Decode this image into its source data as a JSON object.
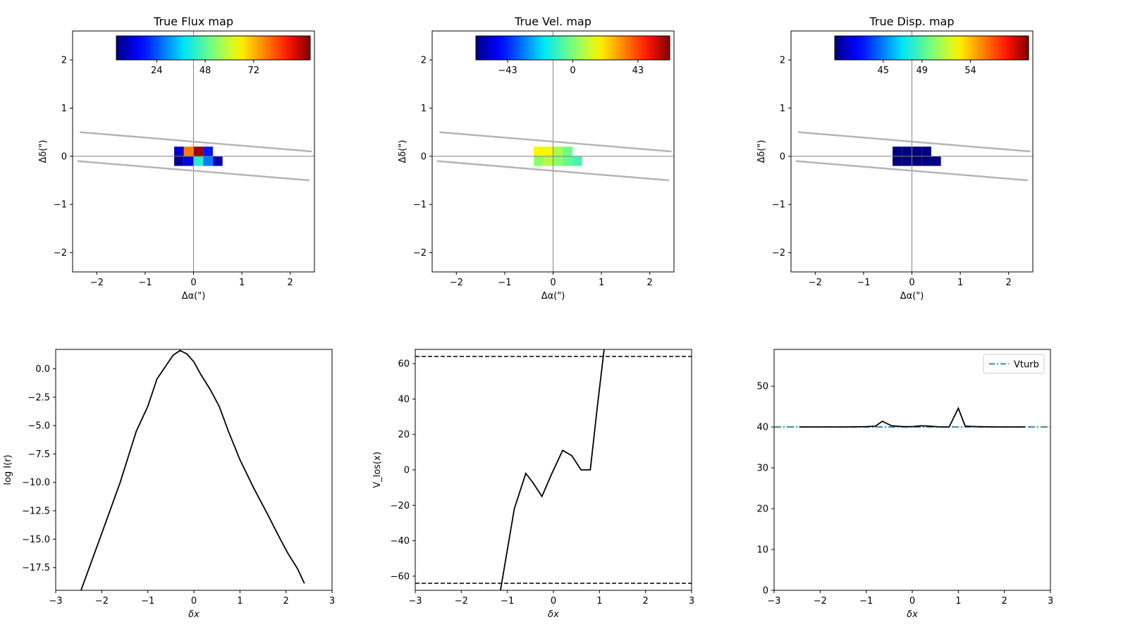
{
  "chart_data": [
    {
      "type": "heatmap",
      "title": "True Flux map",
      "xlabel": "Δα(\")",
      "ylabel": "Δδ(\")",
      "xlim": [
        -2.5,
        2.5
      ],
      "ylim": [
        -2.4,
        2.6
      ],
      "xticks": [
        -2,
        -1,
        0,
        1,
        2
      ],
      "yticks": [
        -2,
        -1,
        0,
        1,
        2
      ],
      "xtick_labels": [
        "−2",
        "−1",
        "0",
        "1",
        "2"
      ],
      "ytick_labels": [
        "−2",
        "−1",
        "0",
        "1",
        "2"
      ],
      "colormap": "jet",
      "colorbar": {
        "vmin": 4,
        "vmax": 100,
        "ticks": [
          24,
          48,
          72
        ],
        "tick_labels": [
          "24",
          "48",
          "72"
        ]
      },
      "slit_lines": [
        {
          "x": [
            -2.35,
            2.45
          ],
          "y": [
            0.5,
            0.1
          ]
        },
        {
          "x": [
            -2.4,
            2.4
          ],
          "y": [
            -0.1,
            -0.5
          ]
        }
      ],
      "pixel_size": 0.2,
      "cells": [
        {
          "x": -0.4,
          "y": 0.0,
          "v": 10
        },
        {
          "x": -0.2,
          "y": 0.0,
          "v": 78
        },
        {
          "x": 0.0,
          "y": 0.0,
          "v": 98
        },
        {
          "x": 0.2,
          "y": 0.0,
          "v": 18
        },
        {
          "x": -0.4,
          "y": -0.2,
          "v": 5
        },
        {
          "x": -0.2,
          "y": -0.2,
          "v": 12
        },
        {
          "x": 0.0,
          "y": -0.2,
          "v": 42
        },
        {
          "x": 0.2,
          "y": -0.2,
          "v": 28
        },
        {
          "x": 0.4,
          "y": -0.2,
          "v": 8
        }
      ]
    },
    {
      "type": "heatmap",
      "title": "True Vel. map",
      "xlabel": "Δα(\")",
      "ylabel": "Δδ(\")",
      "xlim": [
        -2.5,
        2.5
      ],
      "ylim": [
        -2.4,
        2.6
      ],
      "xticks": [
        -2,
        -1,
        0,
        1,
        2
      ],
      "yticks": [
        -2,
        -1,
        0,
        1,
        2
      ],
      "xtick_labels": [
        "−2",
        "−1",
        "0",
        "1",
        "2"
      ],
      "ytick_labels": [
        "−2",
        "−1",
        "0",
        "1",
        "2"
      ],
      "colormap": "jet",
      "colorbar": {
        "vmin": -64,
        "vmax": 64,
        "ticks": [
          -43,
          0,
          43
        ],
        "tick_labels": [
          "−43",
          "0",
          "43"
        ]
      },
      "slit_lines": [
        {
          "x": [
            -2.35,
            2.45
          ],
          "y": [
            0.5,
            0.1
          ]
        },
        {
          "x": [
            -2.4,
            2.4
          ],
          "y": [
            -0.1,
            -0.5
          ]
        }
      ],
      "pixel_size": 0.2,
      "cells": [
        {
          "x": -0.4,
          "y": 0.0,
          "v": 18
        },
        {
          "x": -0.2,
          "y": 0.0,
          "v": 16
        },
        {
          "x": 0.0,
          "y": 0.0,
          "v": 6
        },
        {
          "x": 0.2,
          "y": 0.0,
          "v": -2
        },
        {
          "x": -0.4,
          "y": -0.2,
          "v": 2
        },
        {
          "x": -0.2,
          "y": -0.2,
          "v": 8
        },
        {
          "x": 0.0,
          "y": -0.2,
          "v": 2
        },
        {
          "x": 0.2,
          "y": -0.2,
          "v": -4
        },
        {
          "x": 0.4,
          "y": -0.2,
          "v": -8
        }
      ]
    },
    {
      "type": "heatmap",
      "title": "True Disp. map",
      "xlabel": "Δα(\")",
      "ylabel": "Δδ(\")",
      "xlim": [
        -2.5,
        2.5
      ],
      "ylim": [
        -2.4,
        2.6
      ],
      "xticks": [
        -2,
        -1,
        0,
        1,
        2
      ],
      "yticks": [
        -2,
        -1,
        0,
        1,
        2
      ],
      "xtick_labels": [
        "−2",
        "−1",
        "0",
        "1",
        "2"
      ],
      "ytick_labels": [
        "−2",
        "−1",
        "0",
        "1",
        "2"
      ],
      "colormap": "jet",
      "colorbar": {
        "vmin": 40,
        "vmax": 60,
        "ticks": [
          45,
          49,
          54
        ],
        "tick_labels": [
          "45",
          "49",
          "54"
        ]
      },
      "slit_lines": [
        {
          "x": [
            -2.35,
            2.45
          ],
          "y": [
            0.5,
            0.1
          ]
        },
        {
          "x": [
            -2.4,
            2.4
          ],
          "y": [
            -0.1,
            -0.5
          ]
        }
      ],
      "pixel_size": 0.2,
      "cells": [
        {
          "x": -0.4,
          "y": 0.0,
          "v": 40
        },
        {
          "x": -0.2,
          "y": 0.0,
          "v": 40
        },
        {
          "x": 0.0,
          "y": 0.0,
          "v": 40
        },
        {
          "x": 0.2,
          "y": 0.0,
          "v": 40
        },
        {
          "x": -0.4,
          "y": -0.2,
          "v": 40
        },
        {
          "x": -0.2,
          "y": -0.2,
          "v": 40
        },
        {
          "x": 0.0,
          "y": -0.2,
          "v": 40
        },
        {
          "x": 0.2,
          "y": -0.2,
          "v": 40
        },
        {
          "x": 0.4,
          "y": -0.2,
          "v": 40
        }
      ]
    },
    {
      "type": "line",
      "title": "",
      "xlabel": "δx",
      "ylabel": "log I(r)",
      "xlim": [
        -3,
        3
      ],
      "ylim": [
        -19.5,
        1.7
      ],
      "xticks": [
        -3,
        -2,
        -1,
        0,
        1,
        2,
        3
      ],
      "yticks": [
        0.0,
        -2.5,
        -5.0,
        -7.5,
        -10.0,
        -12.5,
        -15.0,
        -17.5
      ],
      "xtick_labels": [
        "−3",
        "−2",
        "−1",
        "0",
        "1",
        "2",
        "3"
      ],
      "ytick_labels": [
        "0.0",
        "−2.5",
        "−5.0",
        "−7.5",
        "−10.0",
        "−12.5",
        "−15.0",
        "−17.5"
      ],
      "series": [
        {
          "color": "#000000",
          "linestyle": "solid",
          "x": [
            -2.45,
            -2.0,
            -1.6,
            -1.25,
            -1.0,
            -0.8,
            -0.6,
            -0.45,
            -0.3,
            -0.15,
            0.0,
            0.15,
            0.35,
            0.55,
            0.75,
            1.0,
            1.3,
            1.6,
            1.85,
            2.05,
            2.25,
            2.4
          ],
          "y": [
            -19.5,
            -14.5,
            -10.0,
            -5.5,
            -3.3,
            -0.9,
            0.3,
            1.2,
            1.6,
            1.3,
            0.6,
            -0.5,
            -1.8,
            -3.3,
            -5.5,
            -8.0,
            -10.5,
            -12.8,
            -14.8,
            -16.3,
            -17.6,
            -18.9
          ]
        }
      ]
    },
    {
      "type": "line",
      "title": "",
      "xlabel": "δx",
      "ylabel": "V_los(x)",
      "xlim": [
        -3,
        3
      ],
      "ylim": [
        -68,
        68
      ],
      "xticks": [
        -3,
        -2,
        -1,
        0,
        1,
        2,
        3
      ],
      "yticks": [
        60,
        40,
        20,
        0,
        -20,
        -40,
        -60
      ],
      "xtick_labels": [
        "−3",
        "−2",
        "−1",
        "0",
        "1",
        "2",
        "3"
      ],
      "ytick_labels": [
        "60",
        "40",
        "20",
        "0",
        "−20",
        "−40",
        "−60"
      ],
      "hlines": [
        {
          "y": 64,
          "linestyle": "dashed"
        },
        {
          "y": -64,
          "linestyle": "dashed"
        }
      ],
      "series": [
        {
          "color": "#000000",
          "linestyle": "solid",
          "x": [
            -1.15,
            -1.0,
            -0.85,
            -0.6,
            -0.45,
            -0.25,
            -0.05,
            0.2,
            0.4,
            0.6,
            0.8,
            0.95,
            1.1
          ],
          "y": [
            -68,
            -45,
            -22,
            -2,
            -7,
            -15,
            -3,
            11,
            8,
            0,
            0,
            35,
            68
          ]
        }
      ]
    },
    {
      "type": "line",
      "title": "",
      "xlabel": "δx",
      "ylabel": "",
      "xlim": [
        -3,
        3
      ],
      "ylim": [
        0,
        59
      ],
      "xticks": [
        -3,
        -2,
        -1,
        0,
        1,
        2,
        3
      ],
      "yticks": [
        0,
        10,
        20,
        30,
        40,
        50
      ],
      "xtick_labels": [
        "−3",
        "−2",
        "−1",
        "0",
        "1",
        "2",
        "3"
      ],
      "ytick_labels": [
        "0",
        "10",
        "20",
        "30",
        "40",
        "50"
      ],
      "legend": {
        "position": "top-right",
        "entries": [
          "Vturb"
        ]
      },
      "series": [
        {
          "color": "#000000",
          "linestyle": "solid",
          "x": [
            -2.45,
            -2.0,
            -1.5,
            -1.0,
            -0.8,
            -0.65,
            -0.45,
            -0.2,
            0.0,
            0.2,
            0.4,
            0.6,
            0.8,
            1.0,
            1.15,
            1.4,
            1.8,
            2.2,
            2.45
          ],
          "y": [
            40,
            40,
            40,
            40.1,
            40.2,
            41.4,
            40.3,
            40.1,
            40.1,
            40.3,
            40.2,
            40.0,
            40.0,
            44.6,
            40.2,
            40.1,
            40.0,
            40.0,
            40.0
          ]
        },
        {
          "name": "Vturb",
          "color": "#1f77b4",
          "linestyle": "dashdot",
          "x": [
            -3,
            3
          ],
          "y": [
            40,
            40
          ]
        }
      ]
    }
  ]
}
